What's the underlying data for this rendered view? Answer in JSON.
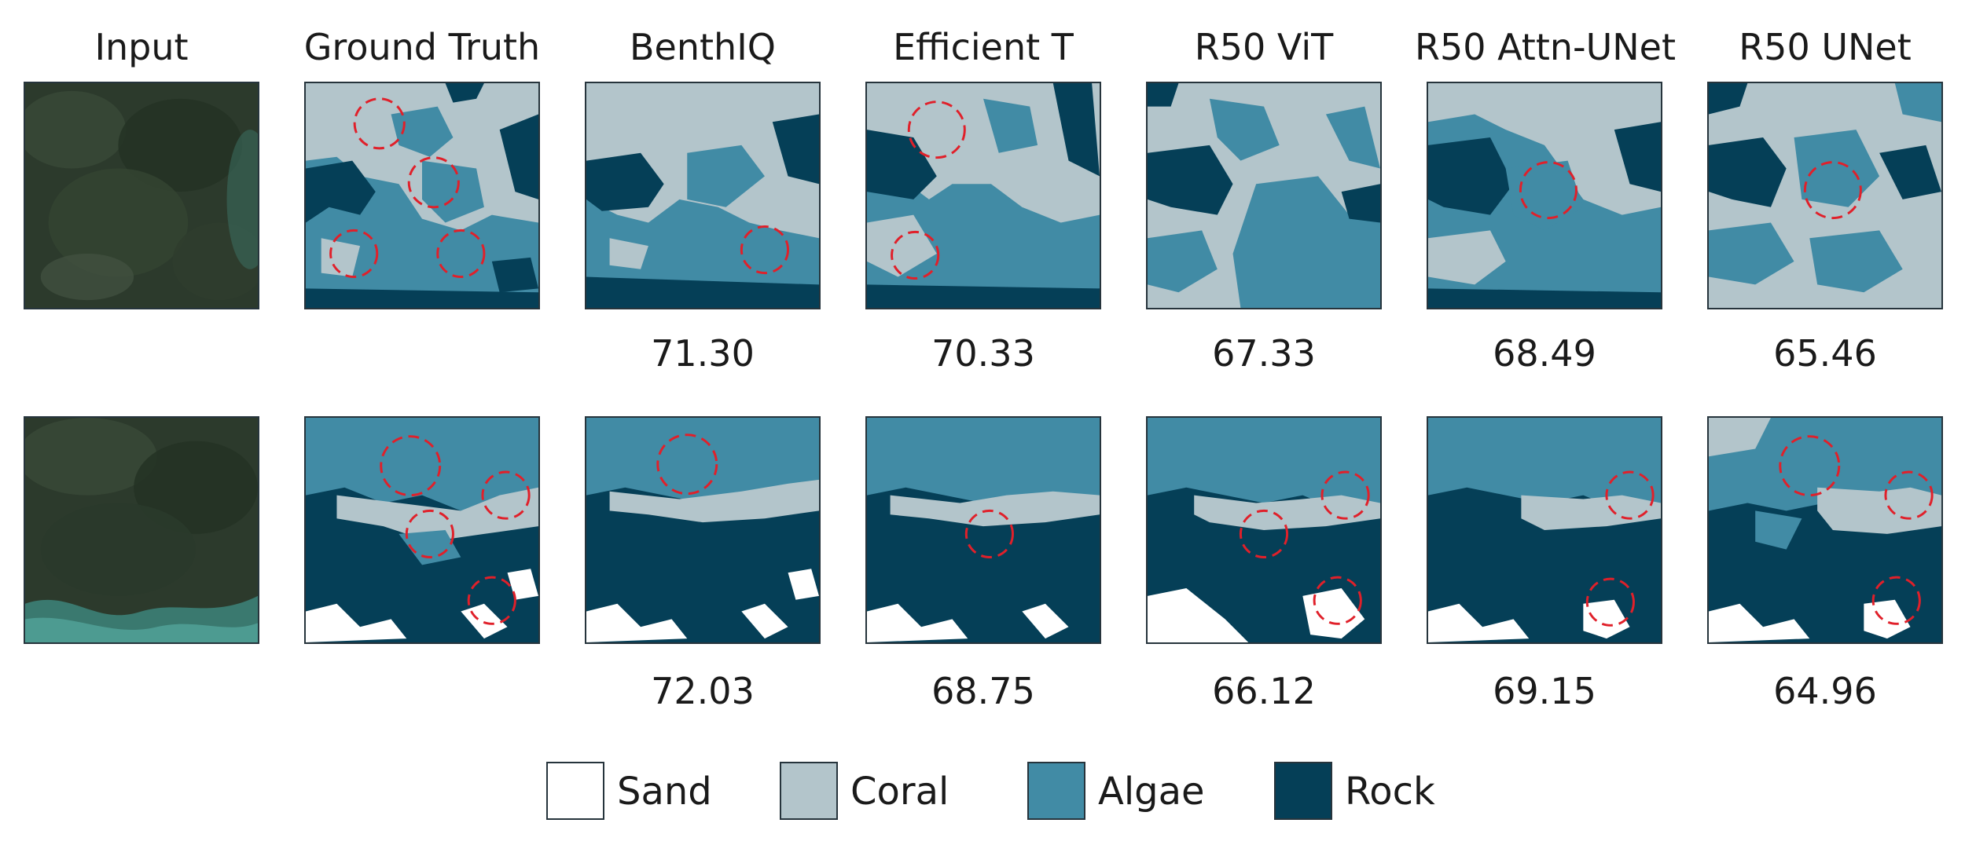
{
  "columns": [
    {
      "key": "input",
      "title": "Input"
    },
    {
      "key": "gt",
      "title": "Ground Truth"
    },
    {
      "key": "benthiq",
      "title": "BenthIQ"
    },
    {
      "key": "efft",
      "title": "Efficient T"
    },
    {
      "key": "r50vit",
      "title": "R50 ViT"
    },
    {
      "key": "r50attn",
      "title": "R50 Attn-UNet"
    },
    {
      "key": "r50unet",
      "title": "R50 UNet"
    }
  ],
  "rows": [
    {
      "scores": [
        "71.30",
        "70.33",
        "67.33",
        "68.49",
        "65.46"
      ]
    },
    {
      "scores": [
        "72.03",
        "68.75",
        "66.12",
        "69.15",
        "64.96"
      ]
    }
  ],
  "legend": [
    {
      "label": "Sand",
      "color": "#ffffff"
    },
    {
      "label": "Coral",
      "color": "#b3c5cb"
    },
    {
      "label": "Algae",
      "color": "#418ba5"
    },
    {
      "label": "Rock",
      "color": "#053f57"
    }
  ],
  "highlight_color": "#e0202a"
}
